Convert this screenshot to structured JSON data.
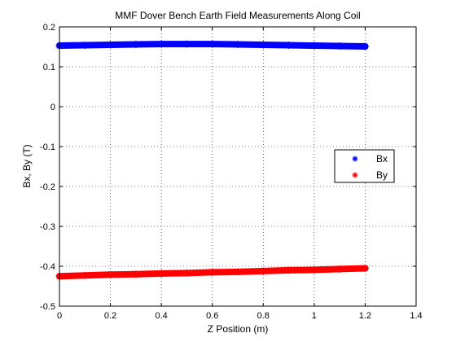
{
  "chart_data": {
    "type": "scatter",
    "title": "MMF Dover Bench Earth Field Measurements Along Coil",
    "xlabel": "Z Position (m)",
    "ylabel": "Bx, By (T)",
    "xlim": [
      0,
      1.4
    ],
    "ylim": [
      -0.5,
      0.2
    ],
    "xticks": [
      0,
      0.2,
      0.4,
      0.6,
      0.8,
      1,
      1.2,
      1.4
    ],
    "xtick_labels": [
      "0",
      "0.2",
      "0.4",
      "0.6",
      "0.8",
      "1",
      "1.2",
      "1.4"
    ],
    "yticks": [
      -0.5,
      -0.4,
      -0.3,
      -0.2,
      -0.1,
      0,
      0.1,
      0.2
    ],
    "ytick_labels": [
      "-0.5",
      "-0.4",
      "-0.3",
      "-0.2",
      "-0.1",
      "0",
      "0.1",
      "0.2"
    ],
    "grid": true,
    "legend_position": "right",
    "marker": "asterisk",
    "series": [
      {
        "name": "Bx",
        "color": "#0000ff",
        "x": [
          0,
          0.1,
          0.2,
          0.3,
          0.4,
          0.5,
          0.6,
          0.7,
          0.8,
          0.9,
          1.0,
          1.1,
          1.2
        ],
        "y": [
          0.153,
          0.154,
          0.155,
          0.156,
          0.157,
          0.157,
          0.157,
          0.156,
          0.155,
          0.154,
          0.153,
          0.152,
          0.151
        ]
      },
      {
        "name": "By",
        "color": "#ff0000",
        "x": [
          0,
          0.1,
          0.2,
          0.3,
          0.4,
          0.5,
          0.6,
          0.7,
          0.8,
          0.9,
          1.0,
          1.1,
          1.2
        ],
        "y": [
          -0.425,
          -0.423,
          -0.421,
          -0.42,
          -0.418,
          -0.417,
          -0.415,
          -0.414,
          -0.412,
          -0.41,
          -0.409,
          -0.407,
          -0.405
        ]
      }
    ]
  }
}
